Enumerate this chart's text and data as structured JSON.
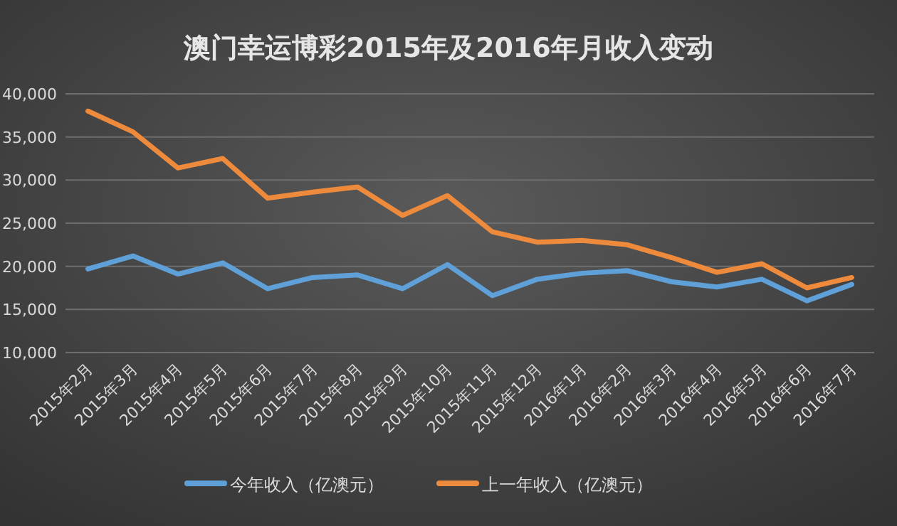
{
  "chart_data": {
    "type": "line",
    "title": "澳门幸运博彩2015年及2016年月收入变动",
    "categories": [
      "2015年2月",
      "2015年3月",
      "2015年4月",
      "2015年5月",
      "2015年6月",
      "2015年7月",
      "2015年8月",
      "2015年9月",
      "2015年10月",
      "2015年11月",
      "2015年12月",
      "2016年1月",
      "2016年2月",
      "2016年3月",
      "2016年4月",
      "2016年5月",
      "2016年6月",
      "2016年7月"
    ],
    "series": [
      {
        "name": "今年收入（亿澳元）",
        "color": "#5fa0d8",
        "values": [
          19700,
          21200,
          19100,
          20400,
          17400,
          18700,
          19000,
          17400,
          20200,
          16600,
          18500,
          19200,
          19500,
          18200,
          17600,
          18500,
          16000,
          17900
        ]
      },
      {
        "name": "上一年收入（亿澳元）",
        "color": "#ed8a3c",
        "values": [
          38000,
          35600,
          31400,
          32500,
          27900,
          28600,
          29200,
          25900,
          28200,
          24000,
          22800,
          23000,
          22500,
          21000,
          19300,
          20300,
          17500,
          18700
        ]
      }
    ],
    "ylim": [
      10000,
      40000
    ],
    "yticks": [
      {
        "value": 10000,
        "label": "10,000"
      },
      {
        "value": 15000,
        "label": "15,000"
      },
      {
        "value": 20000,
        "label": "20,000"
      },
      {
        "value": 25000,
        "label": "25,000"
      },
      {
        "value": 30000,
        "label": "30,000"
      },
      {
        "value": 35000,
        "label": "35,000"
      },
      {
        "value": 40000,
        "label": "40,000"
      }
    ],
    "grid": "y",
    "legend": "bottom"
  }
}
